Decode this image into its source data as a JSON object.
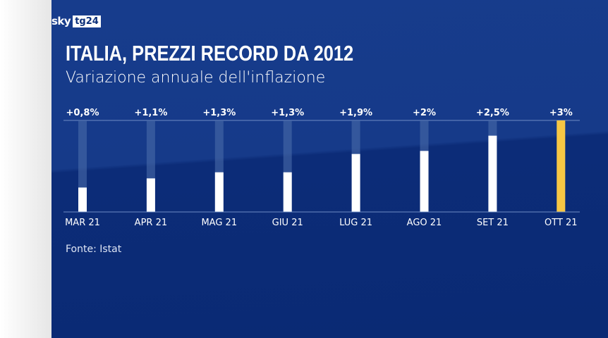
{
  "brand": {
    "sky": "sky",
    "tg": "tg24"
  },
  "title": "ITALIA, PREZZI RECORD DA 2012",
  "subtitle": "Variazione annuale dell'inflazione",
  "source": "Fonte: Istat",
  "colors": {
    "background": "#0b2d77",
    "bar": "#ffffff",
    "highlight": "#f7c744",
    "track": "#4a6aa8"
  },
  "chart_data": {
    "type": "bar",
    "categories": [
      "MAR 21",
      "APR 21",
      "MAG 21",
      "GIU 21",
      "LUG 21",
      "AGO 21",
      "SET 21",
      "OTT 21"
    ],
    "values": [
      0.8,
      1.1,
      1.3,
      1.3,
      1.9,
      2.0,
      2.5,
      3.0
    ],
    "labels": [
      "+0,8%",
      "+1,1%",
      "+1,3%",
      "+1,3%",
      "+1,9%",
      "+2%",
      "+2,5%",
      "+3%"
    ],
    "highlight_index": 7,
    "ylim": [
      0,
      3
    ],
    "ylabel": "",
    "xlabel": ""
  }
}
